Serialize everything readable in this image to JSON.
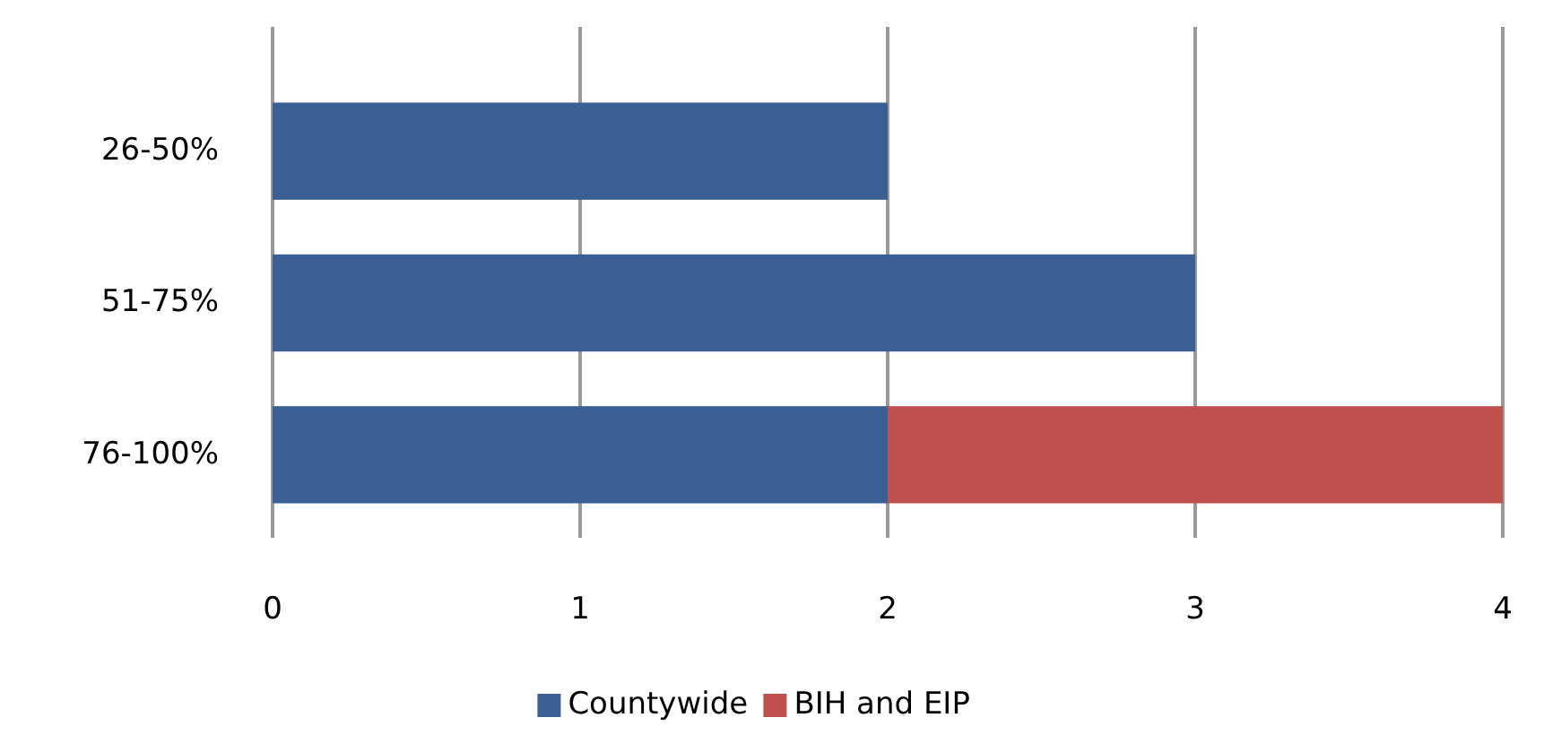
{
  "chart_data": {
    "type": "bar",
    "orientation": "horizontal",
    "stacked": true,
    "categories": [
      "26-50%",
      "51-75%",
      "76-100%"
    ],
    "series": [
      {
        "name": "Countywide",
        "color": "#3a5f94",
        "values": [
          2,
          3,
          2
        ]
      },
      {
        "name": "BIH and EIP",
        "color": "#c0504d",
        "values": [
          0,
          0,
          2
        ]
      }
    ],
    "xlim": [
      0,
      4
    ],
    "xticks": [
      0,
      1,
      2,
      3,
      4
    ],
    "grid": "x",
    "legend": "bottom"
  }
}
